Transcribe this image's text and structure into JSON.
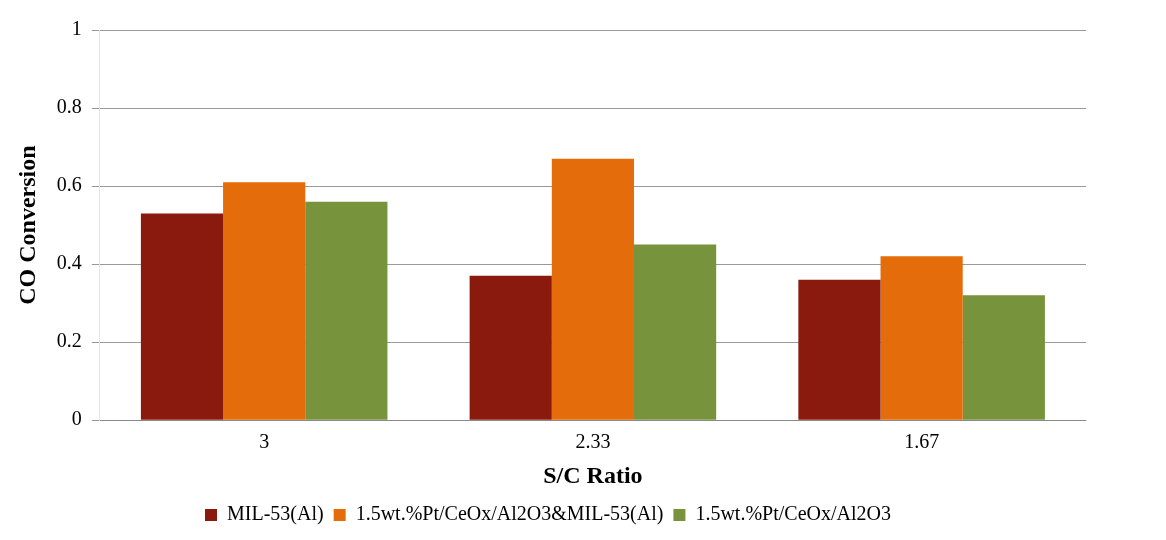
{
  "chart_data": {
    "type": "bar",
    "xlabel": "S/C Ratio",
    "ylabel": "CO Conversion",
    "categories": [
      "3",
      "2.33",
      "1.67"
    ],
    "series": [
      {
        "name": "MIL-53(Al)",
        "color": "#8b1a0e",
        "values": [
          0.53,
          0.37,
          0.36
        ]
      },
      {
        "name": "1.5wt.%Pt/CeOx/Al2O3&MIL-53(Al)",
        "color": "#e46c0a",
        "values": [
          0.61,
          0.67,
          0.42
        ]
      },
      {
        "name": "1.5wt.%Pt/CeOx/Al2O3",
        "color": "#77933c",
        "values": [
          0.56,
          0.45,
          0.32
        ]
      }
    ],
    "ylim": [
      0,
      1
    ],
    "yticks": [
      0,
      0.2,
      0.4,
      0.6,
      0.8,
      1
    ],
    "grid": "y",
    "legend": "bottom"
  }
}
